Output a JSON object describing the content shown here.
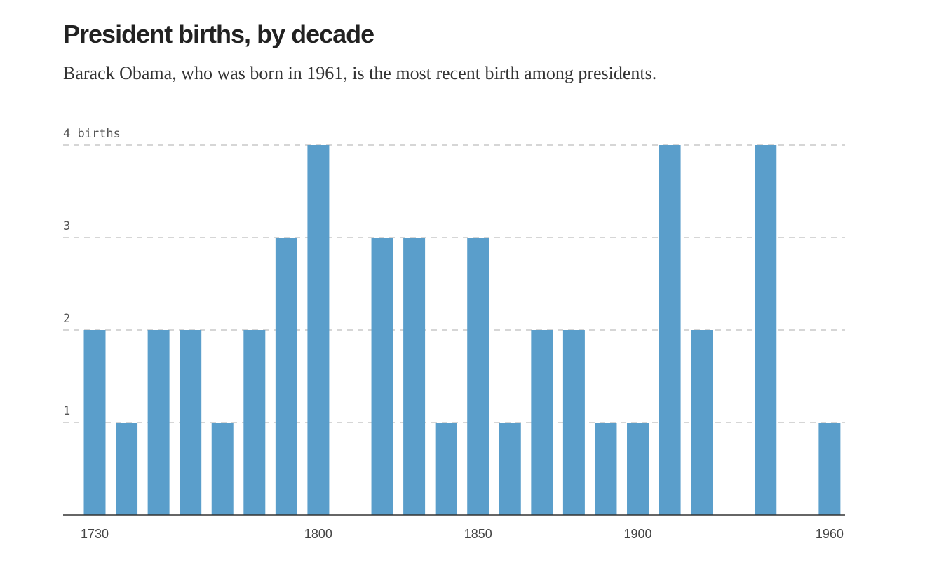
{
  "title": "President births, by decade",
  "subtitle": "Barack Obama, who was born in 1961, is the most recent birth among presidents.",
  "chart_data": {
    "type": "bar",
    "title": "President births, by decade",
    "subtitle": "Barack Obama, who was born in 1961, is the most recent birth among presidents.",
    "categories": [
      1730,
      1740,
      1750,
      1760,
      1770,
      1780,
      1790,
      1800,
      1810,
      1820,
      1830,
      1840,
      1850,
      1860,
      1870,
      1880,
      1890,
      1900,
      1910,
      1920,
      1930,
      1940,
      1950,
      1960
    ],
    "values": [
      2,
      1,
      2,
      2,
      1,
      2,
      3,
      4,
      0,
      3,
      3,
      1,
      3,
      1,
      2,
      2,
      1,
      1,
      4,
      2,
      0,
      4,
      0,
      1
    ],
    "ylim": [
      0,
      4
    ],
    "yticks": [
      1,
      2,
      3,
      4
    ],
    "ytick_labels": [
      "1",
      "2",
      "3",
      "4 births"
    ],
    "xtick_labels": [
      "1730",
      "1800",
      "1850",
      "1900",
      "1960"
    ],
    "grid": true,
    "bar_color": "#5a9ecb",
    "grid_color": "#c8c8c8"
  }
}
